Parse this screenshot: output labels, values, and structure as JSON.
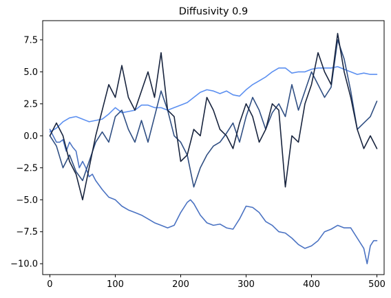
{
  "chart_data": {
    "type": "line",
    "title": "Diffusivity 0.9",
    "xlabel": "",
    "ylabel": "",
    "xlim": [
      -11,
      511
    ],
    "ylim": [
      -10.85,
      9.0
    ],
    "xticks": [
      0,
      100,
      200,
      300,
      400,
      500
    ],
    "xtick_labels": [
      "0",
      "100",
      "200",
      "300",
      "400",
      "500"
    ],
    "yticks": [
      -10.0,
      -7.5,
      -5.0,
      -2.5,
      0.0,
      2.5,
      5.0,
      7.5
    ],
    "ytick_labels": [
      "−10.0",
      "−7.5",
      "−5.0",
      "−2.5",
      "0.0",
      "2.5",
      "5.0",
      "7.5"
    ],
    "grid": false,
    "legend": "none",
    "series": [
      {
        "color": "#5b8ff0",
        "x": [
          0,
          10,
          20,
          30,
          40,
          50,
          60,
          70,
          80,
          90,
          100,
          110,
          120,
          130,
          140,
          150,
          160,
          170,
          180,
          190,
          200,
          210,
          220,
          230,
          240,
          250,
          260,
          270,
          280,
          290,
          300,
          310,
          320,
          330,
          340,
          350,
          360,
          370,
          380,
          390,
          400,
          410,
          420,
          430,
          440,
          450,
          460,
          470,
          480,
          490,
          500
        ],
        "y": [
          0.3,
          0.6,
          1.1,
          1.4,
          1.5,
          1.3,
          1.1,
          1.2,
          1.3,
          1.7,
          2.2,
          1.8,
          1.9,
          2.0,
          2.4,
          2.4,
          2.2,
          2.2,
          2.0,
          2.2,
          2.4,
          2.6,
          3.0,
          3.4,
          3.6,
          3.5,
          3.3,
          3.5,
          3.2,
          3.1,
          3.6,
          4.0,
          4.3,
          4.6,
          5.0,
          5.3,
          5.3,
          4.9,
          5.0,
          5.0,
          5.2,
          5.3,
          5.3,
          5.3,
          5.4,
          5.2,
          5.0,
          4.8,
          4.9,
          4.8,
          4.8
        ]
      },
      {
        "color": "#4a72c2",
        "x": [
          0,
          5,
          10,
          15,
          20,
          25,
          30,
          35,
          40,
          45,
          50,
          55,
          60,
          65,
          70,
          80,
          90,
          100,
          110,
          120,
          130,
          140,
          150,
          160,
          170,
          180,
          190,
          200,
          210,
          215,
          220,
          230,
          240,
          250,
          260,
          270,
          280,
          290,
          300,
          310,
          320,
          330,
          340,
          350,
          360,
          370,
          380,
          390,
          400,
          410,
          420,
          430,
          440,
          450,
          460,
          470,
          480,
          485,
          490,
          495,
          500
        ],
        "y": [
          0.5,
          0.0,
          -0.5,
          -0.5,
          -0.3,
          -1.2,
          -0.5,
          -0.9,
          -1.2,
          -2.5,
          -2.0,
          -2.5,
          -3.2,
          -3.0,
          -3.5,
          -4.2,
          -4.8,
          -5.0,
          -5.5,
          -5.8,
          -6.0,
          -6.2,
          -6.5,
          -6.8,
          -7.0,
          -7.2,
          -7.0,
          -6.0,
          -5.2,
          -5.0,
          -5.3,
          -6.2,
          -6.8,
          -7.0,
          -6.9,
          -7.2,
          -7.3,
          -6.5,
          -5.5,
          -5.6,
          -6.0,
          -6.7,
          -7.0,
          -7.5,
          -7.6,
          -8.0,
          -8.5,
          -8.8,
          -8.6,
          -8.2,
          -7.5,
          -7.3,
          -7.0,
          -7.2,
          -7.2,
          -8.0,
          -8.8,
          -10.0,
          -8.6,
          -8.2,
          -8.2
        ]
      },
      {
        "color": "#2f4e82",
        "x": [
          0,
          10,
          20,
          30,
          40,
          50,
          60,
          70,
          80,
          90,
          100,
          110,
          120,
          130,
          140,
          150,
          160,
          170,
          180,
          190,
          200,
          210,
          220,
          230,
          240,
          250,
          260,
          270,
          280,
          290,
          300,
          310,
          320,
          330,
          340,
          350,
          360,
          370,
          380,
          390,
          400,
          410,
          420,
          430,
          440,
          450,
          460,
          470,
          480,
          490,
          500
        ],
        "y": [
          0.0,
          -0.8,
          -2.5,
          -1.5,
          -2.8,
          -3.5,
          -2.0,
          -0.5,
          0.3,
          -0.5,
          1.5,
          2.0,
          0.5,
          -0.5,
          1.2,
          -0.5,
          1.5,
          3.5,
          2.0,
          0.0,
          -0.5,
          -1.5,
          -4.0,
          -2.5,
          -1.5,
          -0.8,
          -0.5,
          0.2,
          1.0,
          -0.5,
          1.5,
          3.0,
          2.0,
          0.5,
          1.8,
          2.5,
          1.5,
          4.0,
          2.0,
          3.5,
          5.0,
          4.0,
          3.0,
          3.8,
          7.5,
          6.0,
          3.5,
          0.5,
          1.0,
          1.5,
          2.7
        ]
      },
      {
        "color": "#17233d",
        "x": [
          0,
          10,
          20,
          30,
          40,
          50,
          60,
          70,
          80,
          90,
          100,
          110,
          120,
          130,
          140,
          150,
          160,
          170,
          180,
          190,
          200,
          210,
          220,
          230,
          240,
          250,
          260,
          270,
          280,
          290,
          300,
          310,
          320,
          330,
          340,
          350,
          360,
          370,
          380,
          390,
          400,
          410,
          420,
          430,
          440,
          450,
          460,
          470,
          480,
          490,
          500
        ],
        "y": [
          0.0,
          1.0,
          0.0,
          -2.0,
          -3.0,
          -5.0,
          -2.5,
          0.0,
          2.0,
          4.0,
          3.0,
          5.5,
          3.0,
          2.0,
          3.5,
          5.0,
          3.0,
          6.5,
          2.0,
          1.5,
          -2.0,
          -1.5,
          0.5,
          0.0,
          3.0,
          2.0,
          0.5,
          0.0,
          -1.0,
          1.0,
          2.5,
          1.5,
          -0.5,
          0.5,
          2.5,
          2.0,
          -4.0,
          0.0,
          -0.5,
          2.5,
          4.0,
          6.5,
          5.0,
          4.0,
          8.0,
          5.0,
          3.0,
          0.5,
          -1.0,
          0.0,
          -1.0
        ]
      }
    ]
  }
}
